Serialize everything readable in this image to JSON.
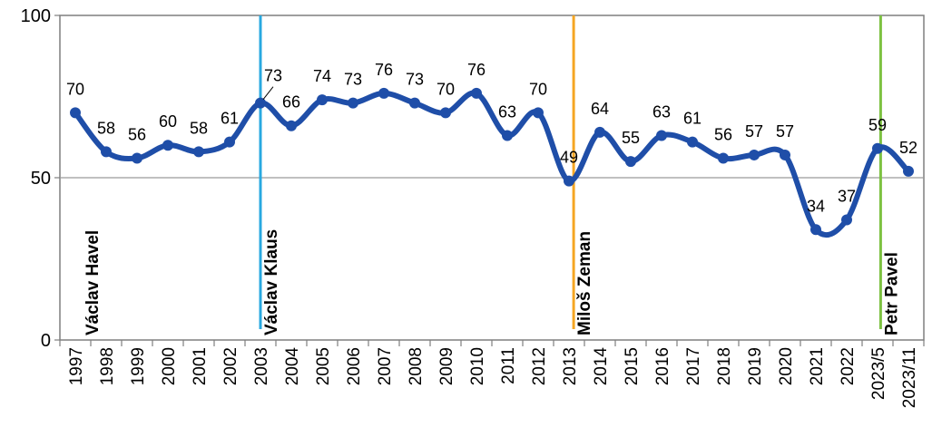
{
  "chart_data": {
    "type": "line",
    "categories": [
      "1997",
      "1998",
      "1999",
      "2000",
      "2001",
      "2002",
      "2003",
      "2004",
      "2005",
      "2006",
      "2007",
      "2008",
      "2009",
      "2010",
      "2011",
      "2012",
      "2013",
      "2014",
      "2015",
      "2016",
      "2017",
      "2018",
      "2019",
      "2020",
      "2021",
      "2022",
      "2023/5",
      "2023/11"
    ],
    "values": [
      70,
      58,
      56,
      60,
      58,
      61,
      73,
      66,
      74,
      73,
      76,
      73,
      70,
      76,
      63,
      70,
      49,
      64,
      55,
      63,
      61,
      56,
      57,
      57,
      34,
      37,
      59,
      52
    ],
    "ylim": [
      0,
      100
    ],
    "yticks": [
      "0",
      "50",
      "100"
    ],
    "gridlines": [
      50
    ],
    "line_color": "#1f4ea8",
    "markers": [
      {
        "label": "Václav Havel",
        "position": 0.2,
        "color": ""
      },
      {
        "label": "Václav Klaus",
        "position": 6.0,
        "color": "#29a9e0"
      },
      {
        "label": "Miloš Zeman",
        "position": 16.15,
        "color": "#f5a623"
      },
      {
        "label": "Petr Pavel",
        "position": 26.1,
        "color": "#7dc242"
      }
    ]
  }
}
